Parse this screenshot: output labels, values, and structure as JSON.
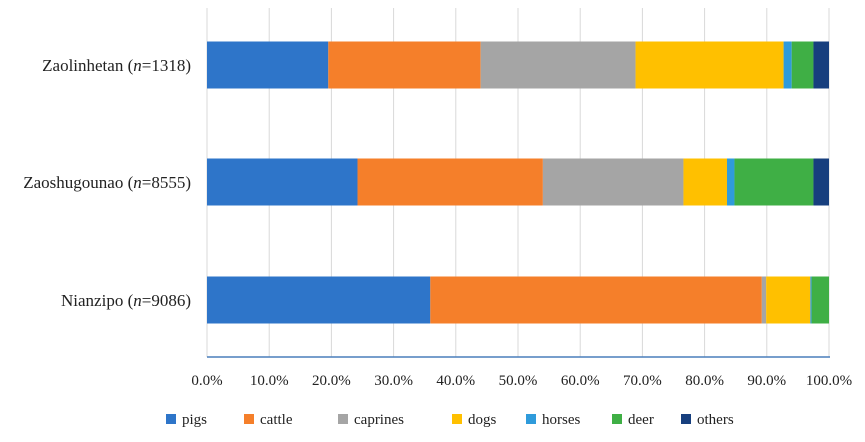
{
  "chart_data": {
    "type": "bar",
    "orientation": "horizontal",
    "stacked": true,
    "categories": [
      {
        "name": "Zaolinhetan",
        "n_prefix": "n",
        "n_value": "=1318"
      },
      {
        "name": "Zaoshugounao",
        "n_prefix": "n",
        "n_value": "=8555"
      },
      {
        "name": "Nianzipo",
        "n_prefix": "n",
        "n_value": "=9086"
      }
    ],
    "series": [
      {
        "name": "pigs",
        "color": "#2E75C9",
        "values": [
          19.5,
          24.2,
          35.9
        ]
      },
      {
        "name": "cattle",
        "color": "#F57F2A",
        "values": [
          24.5,
          29.8,
          53.3
        ]
      },
      {
        "name": "caprines",
        "color": "#A5A5A5",
        "values": [
          24.9,
          22.6,
          0.7
        ]
      },
      {
        "name": "dogs",
        "color": "#FFC000",
        "values": [
          23.8,
          7.0,
          7.1
        ]
      },
      {
        "name": "horses",
        "color": "#2F9BDB",
        "values": [
          1.3,
          1.2,
          0.2
        ]
      },
      {
        "name": "deer",
        "color": "#3FAF45",
        "values": [
          3.5,
          12.7,
          2.8
        ]
      },
      {
        "name": "others",
        "color": "#173F7E",
        "values": [
          2.5,
          2.5,
          0.0
        ]
      }
    ],
    "xlim": [
      0,
      100
    ],
    "xticks": [
      "0.0%",
      "10.0%",
      "20.0%",
      "30.0%",
      "40.0%",
      "50.0%",
      "60.0%",
      "70.0%",
      "80.0%",
      "90.0%",
      "100.0%"
    ],
    "grid": true,
    "legend_position": "bottom"
  }
}
